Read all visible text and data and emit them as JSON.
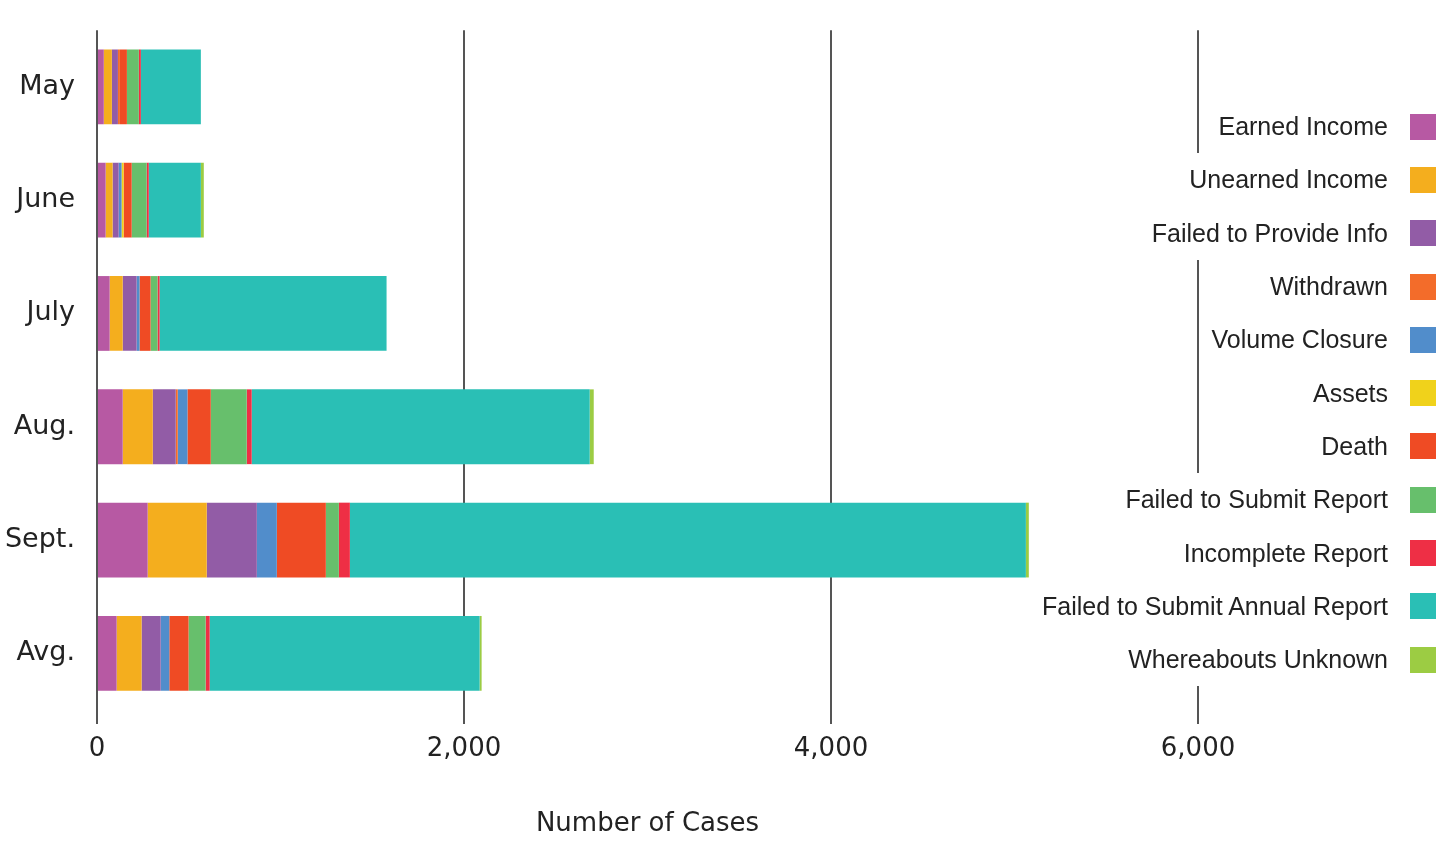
{
  "chart_data": {
    "type": "bar",
    "orientation": "horizontal",
    "stacked": true,
    "xlabel": "Number of Cases",
    "categories": [
      "May",
      "June",
      "July",
      "Aug.",
      "Sept.",
      "Avg."
    ],
    "xlim": [
      0,
      6000
    ],
    "xticks": [
      {
        "value": 0,
        "label": "0"
      },
      {
        "value": 2000,
        "label": "2,000"
      },
      {
        "value": 4000,
        "label": "4,000"
      },
      {
        "value": 6000,
        "label": "6,000"
      }
    ],
    "grid": "x",
    "legend": "right",
    "series": [
      {
        "name": "Earned Income",
        "color": "#b759a3",
        "values": [
          37,
          47,
          69,
          140,
          276,
          107
        ]
      },
      {
        "name": "Unearned Income",
        "color": "#f4ae1e",
        "values": [
          44,
          38,
          71,
          164,
          322,
          136
        ]
      },
      {
        "name": "Failed to Provide Info",
        "color": "#925ca6",
        "values": [
          33,
          33,
          76,
          125,
          273,
          104
        ]
      },
      {
        "name": "Withdrawn",
        "color": "#f36c2a",
        "values": [
          11,
          0,
          0,
          11,
          0,
          0
        ]
      },
      {
        "name": "Volume Closure",
        "color": "#518dcb",
        "values": [
          0,
          16,
          16,
          53,
          109,
          47
        ]
      },
      {
        "name": "Assets",
        "color": "#f0d21b",
        "values": [
          0,
          11,
          0,
          0,
          0,
          0
        ]
      },
      {
        "name": "Death",
        "color": "#ef4b24",
        "values": [
          38,
          44,
          60,
          127,
          267,
          105
        ]
      },
      {
        "name": "Failed to Submit Report",
        "color": "#67bf6c",
        "values": [
          65,
          82,
          38,
          196,
          71,
          93
        ]
      },
      {
        "name": "Incomplete Report",
        "color": "#ee2f45",
        "values": [
          11,
          11,
          11,
          27,
          60,
          22
        ]
      },
      {
        "name": "Failed to Submit Annual Report",
        "color": "#2abfb5",
        "values": [
          327,
          284,
          1237,
          1842,
          3684,
          1471
        ]
      },
      {
        "name": "Whereabouts Unknown",
        "color": "#9ccc43",
        "values": [
          0,
          16,
          0,
          22,
          16,
          11
        ]
      }
    ]
  }
}
